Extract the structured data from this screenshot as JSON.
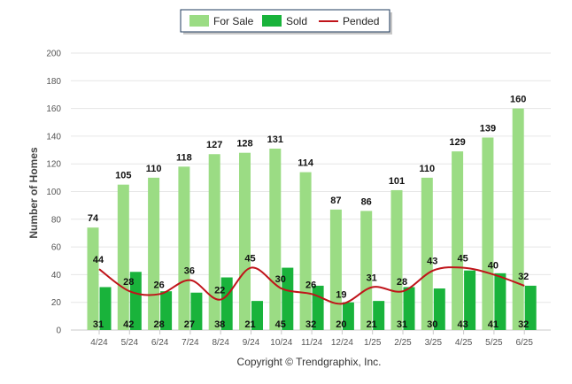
{
  "chart_data": {
    "type": "bar",
    "categories": [
      "4/24",
      "5/24",
      "6/24",
      "7/24",
      "8/24",
      "9/24",
      "10/24",
      "11/24",
      "12/24",
      "1/25",
      "2/25",
      "3/25",
      "4/25",
      "5/25",
      "6/25"
    ],
    "series": [
      {
        "name": "For Sale",
        "kind": "bar",
        "color": "#9bdc84",
        "values": [
          74,
          105,
          110,
          118,
          127,
          128,
          131,
          114,
          87,
          86,
          101,
          110,
          129,
          139,
          160
        ]
      },
      {
        "name": "Sold",
        "kind": "bar",
        "color": "#19b33b",
        "values": [
          31,
          42,
          28,
          27,
          38,
          21,
          45,
          32,
          20,
          21,
          31,
          30,
          43,
          41,
          32
        ]
      },
      {
        "name": "Pended",
        "kind": "line",
        "color": "#c0141a",
        "values": [
          44,
          28,
          26,
          36,
          22,
          45,
          30,
          26,
          19,
          31,
          28,
          43,
          45,
          40,
          32
        ]
      }
    ],
    "ylabel": "Number of Homes",
    "xlabel": "",
    "ylim": [
      0,
      200
    ],
    "yticks": [
      0,
      20,
      40,
      60,
      80,
      100,
      120,
      140,
      160,
      180,
      200
    ],
    "grid": true,
    "legend_position": "top-center",
    "data_labels": true
  },
  "footer": {
    "copyright": "Copyright © Trendgraphix, Inc."
  }
}
